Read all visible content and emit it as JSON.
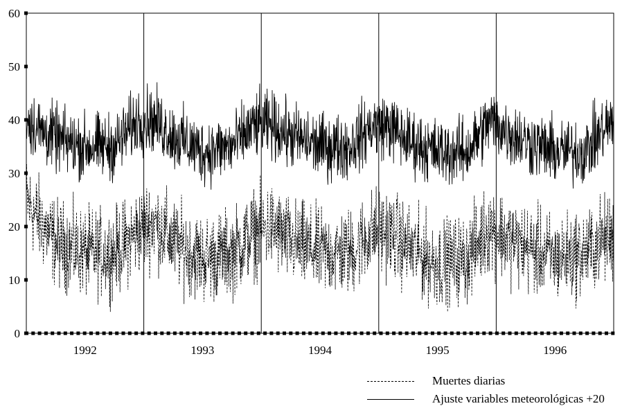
{
  "chart_data": {
    "type": "line",
    "x_ticks": [
      "1992",
      "1993",
      "1994",
      "1995",
      "1996"
    ],
    "y_ticks": [
      "0",
      "10",
      "20",
      "30",
      "40",
      "50",
      "60"
    ],
    "ylim": [
      0,
      60
    ],
    "xlim": [
      1992.0,
      1997.0
    ],
    "year_dividers": [
      1993,
      1994,
      1995,
      1996
    ],
    "grid": false,
    "legend_position": "bottom-right",
    "series": [
      {
        "name": "Muertes diarias",
        "style": "dashed",
        "color": "#000000",
        "seasonal_mean": [
          {
            "x": 1992.0,
            "y": 25
          },
          {
            "x": 1992.08,
            "y": 22
          },
          {
            "x": 1992.25,
            "y": 17
          },
          {
            "x": 1992.5,
            "y": 15
          },
          {
            "x": 1992.75,
            "y": 15
          },
          {
            "x": 1992.95,
            "y": 19
          },
          {
            "x": 1993.08,
            "y": 21
          },
          {
            "x": 1993.25,
            "y": 17
          },
          {
            "x": 1993.5,
            "y": 14
          },
          {
            "x": 1993.75,
            "y": 15
          },
          {
            "x": 1993.95,
            "y": 19
          },
          {
            "x": 1994.08,
            "y": 20
          },
          {
            "x": 1994.25,
            "y": 17
          },
          {
            "x": 1994.5,
            "y": 15
          },
          {
            "x": 1994.75,
            "y": 15
          },
          {
            "x": 1994.95,
            "y": 19
          },
          {
            "x": 1995.08,
            "y": 19
          },
          {
            "x": 1995.25,
            "y": 16
          },
          {
            "x": 1995.5,
            "y": 13
          },
          {
            "x": 1995.75,
            "y": 14
          },
          {
            "x": 1995.95,
            "y": 20
          },
          {
            "x": 1996.08,
            "y": 18
          },
          {
            "x": 1996.25,
            "y": 16
          },
          {
            "x": 1996.5,
            "y": 14
          },
          {
            "x": 1996.75,
            "y": 15
          },
          {
            "x": 1996.95,
            "y": 18
          }
        ],
        "daily_spread": 4
      },
      {
        "name": "Ajuste variables meteorológicas +20",
        "style": "solid",
        "color": "#000000",
        "seasonal_mean": [
          {
            "x": 1992.0,
            "y": 40
          },
          {
            "x": 1992.12,
            "y": 38
          },
          {
            "x": 1992.3,
            "y": 36
          },
          {
            "x": 1992.5,
            "y": 35
          },
          {
            "x": 1992.75,
            "y": 35
          },
          {
            "x": 1992.95,
            "y": 40
          },
          {
            "x": 1993.08,
            "y": 40
          },
          {
            "x": 1993.25,
            "y": 37
          },
          {
            "x": 1993.5,
            "y": 34
          },
          {
            "x": 1993.75,
            "y": 35
          },
          {
            "x": 1993.95,
            "y": 39
          },
          {
            "x": 1994.08,
            "y": 39
          },
          {
            "x": 1994.25,
            "y": 37
          },
          {
            "x": 1994.5,
            "y": 35
          },
          {
            "x": 1994.75,
            "y": 35
          },
          {
            "x": 1994.95,
            "y": 39
          },
          {
            "x": 1995.08,
            "y": 39
          },
          {
            "x": 1995.25,
            "y": 36
          },
          {
            "x": 1995.5,
            "y": 34
          },
          {
            "x": 1995.75,
            "y": 34
          },
          {
            "x": 1995.95,
            "y": 40
          },
          {
            "x": 1996.08,
            "y": 38
          },
          {
            "x": 1996.25,
            "y": 36
          },
          {
            "x": 1996.5,
            "y": 34
          },
          {
            "x": 1996.75,
            "y": 34
          },
          {
            "x": 1996.95,
            "y": 39
          }
        ],
        "daily_spread": 3
      }
    ]
  },
  "legend": {
    "items": [
      {
        "label": "Muertes diarias",
        "style": "dashed"
      },
      {
        "label": "Ajuste variables meteorológicas +20",
        "style": "solid"
      }
    ]
  }
}
